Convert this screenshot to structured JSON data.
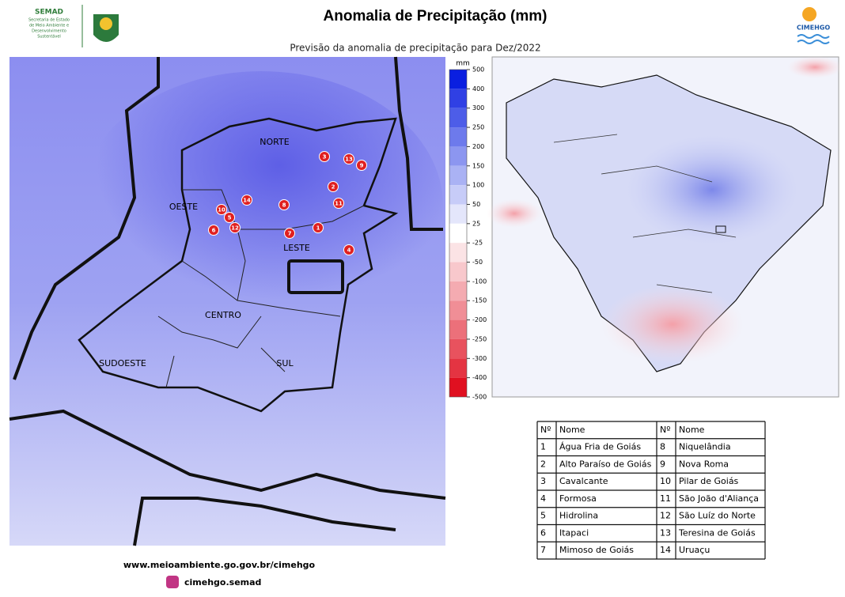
{
  "header": {
    "title": "Anomalia de Precipitação (mm)",
    "subtitle": "Previsão da anomalia de precipitação para Dez/2022",
    "logo_left": {
      "name": "SEMAD",
      "text": [
        "Secretaria de Estado",
        "de Meio Ambiente e",
        "Desenvolvimento",
        "Sustentável"
      ]
    },
    "logo_right": "CIMEHGO"
  },
  "colorbar": {
    "unit": "mm",
    "ticks": [
      500,
      400,
      300,
      250,
      200,
      150,
      100,
      50,
      25,
      -25,
      -50,
      -100,
      -150,
      -200,
      -250,
      -300,
      -400,
      -500
    ]
  },
  "regions": [
    "NORTE",
    "OESTE",
    "LESTE",
    "CENTRO",
    "SUDOESTE",
    "SUL"
  ],
  "markers": [
    "3",
    "13",
    "9",
    "2",
    "14",
    "8",
    "11",
    "10",
    "5",
    "12",
    "6",
    "7",
    "1",
    "4"
  ],
  "table": {
    "header": [
      "Nº",
      "Nome",
      "Nº",
      "Nome"
    ],
    "rows": [
      [
        1,
        "Água Fria de Goiás",
        8,
        "Niquelândia"
      ],
      [
        2,
        "Alto Paraíso de Goiás",
        9,
        "Nova Roma"
      ],
      [
        3,
        "Cavalcante",
        10,
        "Pilar de Goiás"
      ],
      [
        4,
        "Formosa",
        11,
        "São João d'Aliança"
      ],
      [
        5,
        "Hidrolina",
        12,
        "São Luíz do Norte"
      ],
      [
        6,
        "Itapaci",
        13,
        "Teresina de Goiás"
      ],
      [
        7,
        "Mimoso de Goiás",
        14,
        "Uruaçu"
      ]
    ]
  },
  "footer": {
    "website": "www.meioambiente.go.gov.br/cimehgo",
    "instagram": "cimehgo.semad"
  }
}
